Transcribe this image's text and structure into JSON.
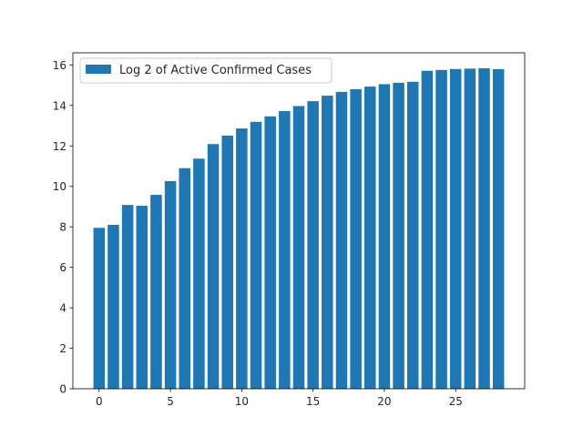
{
  "chart_data": {
    "type": "bar",
    "x": [
      0,
      1,
      2,
      3,
      4,
      5,
      6,
      7,
      8,
      9,
      10,
      11,
      12,
      13,
      14,
      15,
      16,
      17,
      18,
      19,
      20,
      21,
      22,
      23,
      24,
      25,
      26,
      27,
      28
    ],
    "values": [
      7.95,
      8.1,
      9.08,
      9.04,
      9.58,
      10.26,
      10.9,
      11.37,
      12.09,
      12.51,
      12.86,
      13.19,
      13.46,
      13.72,
      13.97,
      14.21,
      14.48,
      14.67,
      14.8,
      14.93,
      15.05,
      15.12,
      15.17,
      15.71,
      15.75,
      15.8,
      15.82,
      15.84,
      15.79
    ],
    "series": [
      {
        "name": "Log 2 of Active Confirmed Cases",
        "color": "#1f77b4"
      }
    ],
    "xticks": [
      0,
      5,
      10,
      15,
      20,
      25
    ],
    "yticks": [
      0,
      2,
      4,
      6,
      8,
      10,
      12,
      14,
      16
    ],
    "xlim": [
      -1.84,
      29.84
    ],
    "ylim": [
      0,
      16.6
    ],
    "legend_placement": "upper-left",
    "grid": false,
    "title": "",
    "xlabel": "",
    "ylabel": ""
  }
}
